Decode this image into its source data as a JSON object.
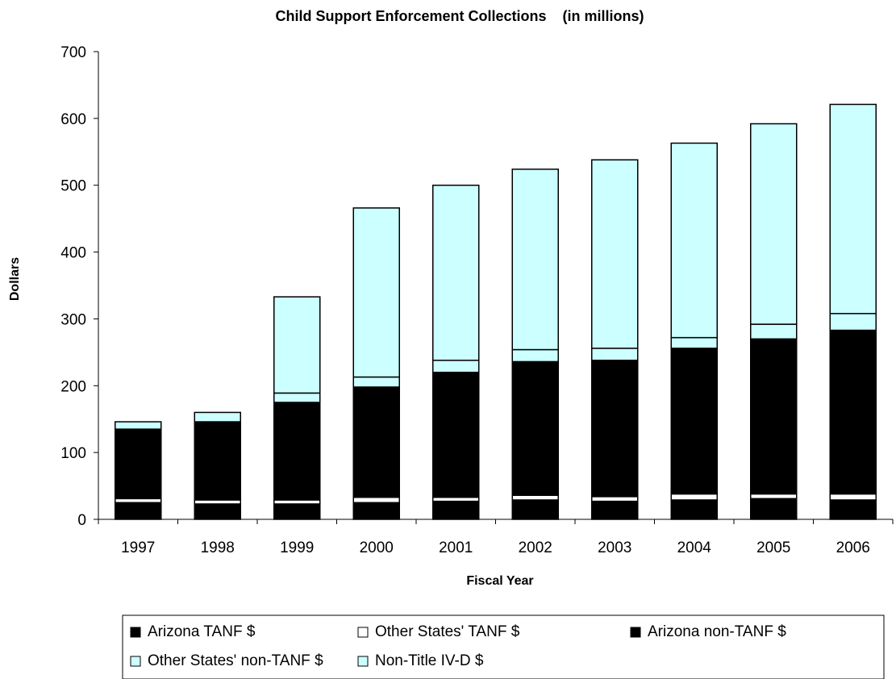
{
  "chart_data": {
    "type": "bar",
    "stacked": true,
    "title": "Child Support Enforcement Collections    (in millions)",
    "xlabel": "Fiscal Year",
    "ylabel": "Dollars",
    "ylim": [
      0,
      700
    ],
    "yticks": [
      0,
      100,
      200,
      300,
      400,
      500,
      600,
      700
    ],
    "categories": [
      "1997",
      "1998",
      "1999",
      "2000",
      "2001",
      "2002",
      "2003",
      "2004",
      "2005",
      "2006"
    ],
    "legend_position": "bottom",
    "series": [
      {
        "name": "Arizona TANF $",
        "color": "#000000",
        "values": [
          25,
          23,
          23,
          25,
          27,
          29,
          27,
          29,
          31,
          29
        ]
      },
      {
        "name": "Other States' TANF $",
        "color": "#ffffff",
        "values": [
          6,
          6,
          6,
          8,
          6,
          7,
          7,
          9,
          7,
          9
        ]
      },
      {
        "name": "Arizona non-TANF $",
        "color": "#000000",
        "values": [
          104,
          117,
          146,
          165,
          187,
          200,
          204,
          218,
          232,
          245
        ]
      },
      {
        "name": "Other States' non-TANF $",
        "color": "#ccffff",
        "values": [
          11,
          14,
          14,
          15,
          18,
          18,
          18,
          16,
          22,
          25
        ]
      },
      {
        "name": "Non-Title IV-D $",
        "color": "#ccffff",
        "values": [
          0,
          0,
          144,
          253,
          262,
          270,
          282,
          291,
          300,
          313
        ]
      }
    ]
  }
}
